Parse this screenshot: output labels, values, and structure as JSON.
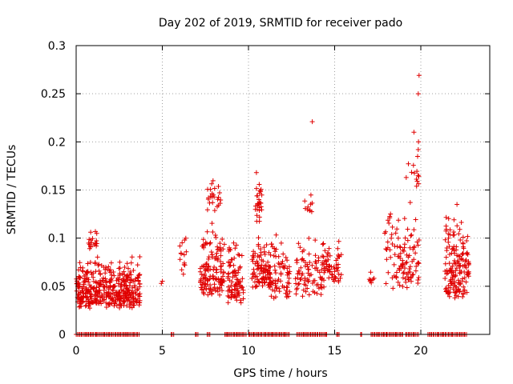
{
  "chart_data": {
    "type": "scatter",
    "title": "Day 202 of 2019, SRMTID for receiver pado",
    "xlabel": "GPS time / hours",
    "ylabel": "SRMTID / TECUs",
    "xlim": [
      0,
      24
    ],
    "ylim": [
      0,
      0.3
    ],
    "xticks": [
      0,
      5,
      10,
      15,
      20
    ],
    "yticks": [
      0,
      0.05,
      0.1,
      0.15,
      0.2,
      0.25,
      0.3
    ],
    "xtick_labels": [
      "0",
      "5",
      "10",
      "15",
      "20"
    ],
    "ytick_labels": [
      "0",
      "0.05",
      "0.1",
      "0.15",
      "0.2",
      "0.25",
      "0.3"
    ],
    "grid": true,
    "marker": "+",
    "color": "#e00000",
    "clusters": [
      {
        "x_start": 0.0,
        "x_end": 3.7,
        "y_min": 0.02,
        "y_max": 0.085,
        "count": 420
      },
      {
        "x_start": 0.7,
        "x_end": 1.2,
        "y_min": 0.085,
        "y_max": 0.113,
        "count": 18
      },
      {
        "x_start": 4.9,
        "x_end": 5.05,
        "y_min": 0.05,
        "y_max": 0.06,
        "count": 2
      },
      {
        "x_start": 6.0,
        "x_end": 6.4,
        "y_min": 0.05,
        "y_max": 0.115,
        "count": 14
      },
      {
        "x_start": 7.2,
        "x_end": 8.6,
        "y_min": 0.03,
        "y_max": 0.12,
        "count": 140
      },
      {
        "x_start": 7.6,
        "x_end": 8.4,
        "y_min": 0.12,
        "y_max": 0.17,
        "count": 24
      },
      {
        "x_start": 8.8,
        "x_end": 9.7,
        "y_min": 0.022,
        "y_max": 0.1,
        "count": 90
      },
      {
        "x_start": 10.2,
        "x_end": 11.3,
        "y_min": 0.04,
        "y_max": 0.11,
        "count": 100
      },
      {
        "x_start": 10.4,
        "x_end": 10.8,
        "y_min": 0.11,
        "y_max": 0.172,
        "count": 28
      },
      {
        "x_start": 11.3,
        "x_end": 12.4,
        "y_min": 0.028,
        "y_max": 0.11,
        "count": 70
      },
      {
        "x_start": 12.7,
        "x_end": 14.4,
        "y_min": 0.03,
        "y_max": 0.11,
        "count": 90
      },
      {
        "x_start": 13.1,
        "x_end": 13.8,
        "y_min": 0.12,
        "y_max": 0.165,
        "count": 10
      },
      {
        "x_start": 14.3,
        "x_end": 15.4,
        "y_min": 0.045,
        "y_max": 0.11,
        "count": 55
      },
      {
        "x_start": 17.0,
        "x_end": 17.3,
        "y_min": 0.048,
        "y_max": 0.07,
        "count": 8
      },
      {
        "x_start": 17.9,
        "x_end": 19.9,
        "y_min": 0.035,
        "y_max": 0.14,
        "count": 110
      },
      {
        "x_start": 19.1,
        "x_end": 19.9,
        "y_min": 0.14,
        "y_max": 0.21,
        "count": 14
      },
      {
        "x_start": 21.4,
        "x_end": 22.8,
        "y_min": 0.025,
        "y_max": 0.135,
        "count": 160
      }
    ],
    "outliers": [
      {
        "x": 13.7,
        "y": 0.221
      },
      {
        "x": 19.9,
        "y": 0.269
      },
      {
        "x": 19.85,
        "y": 0.25
      },
      {
        "x": 19.85,
        "y": 0.192
      },
      {
        "x": 19.6,
        "y": 0.21
      }
    ],
    "zero_ranges": [
      [
        0.0,
        3.7
      ],
      [
        5.5,
        5.7
      ],
      [
        6.9,
        7.1
      ],
      [
        7.6,
        7.8
      ],
      [
        8.6,
        9.9
      ],
      [
        10.0,
        12.4
      ],
      [
        12.8,
        14.6
      ],
      [
        15.1,
        15.3
      ],
      [
        16.5,
        16.6
      ],
      [
        17.1,
        19.0
      ],
      [
        19.1,
        19.9
      ],
      [
        20.4,
        22.7
      ]
    ]
  }
}
